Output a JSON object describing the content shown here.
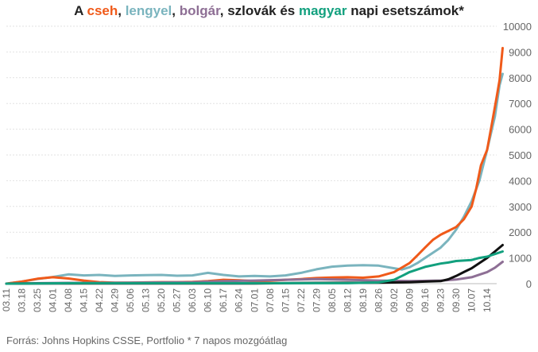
{
  "title_parts": [
    {
      "text": "A ",
      "color": "#222222"
    },
    {
      "text": "cseh",
      "color": "#f05a1a"
    },
    {
      "text": ", ",
      "color": "#222222"
    },
    {
      "text": "lengyel",
      "color": "#7ab4be"
    },
    {
      "text": ", ",
      "color": "#222222"
    },
    {
      "text": "bolgár",
      "color": "#8e6f95"
    },
    {
      "text": ", szlovák és ",
      "color": "#222222"
    },
    {
      "text": "magyar",
      "color": "#12a07e"
    },
    {
      "text": " napi esetszámok*",
      "color": "#222222"
    }
  ],
  "source": "Forrás: Johns Hopkins CSSE, Portfolio   * 7 napos mozgóátlag",
  "chart_data": {
    "type": "line",
    "title": "A cseh, lengyel, bolgár, szlovák és magyar napi esetszámok*",
    "x_tick_labels": [
      "03.11",
      "03.18",
      "03.25",
      "04.01",
      "04.08",
      "04.15",
      "04.22",
      "04.29",
      "05.06",
      "05.13",
      "05.20",
      "05.27",
      "06.03",
      "06.10",
      "06.17",
      "06.24",
      "07.01",
      "07.08",
      "07.15",
      "07.22",
      "07.29",
      "08.05",
      "08.12",
      "08.19",
      "08.26",
      "09.02",
      "09.09",
      "09.16",
      "09.23",
      "09.30",
      "10.07",
      "10.14"
    ],
    "x_unit": "week index from 03.11 (0 = 03.11, 1 = 03.18, ...)",
    "ylim": [
      0,
      10000
    ],
    "y_ticks": [
      "0",
      "1000",
      "2000",
      "3000",
      "4000",
      "5000",
      "6000",
      "7000",
      "8000",
      "9000",
      "10000"
    ],
    "grid": true,
    "series": [
      {
        "name": "lengyel",
        "color": "#7ab4be",
        "points": [
          [
            0,
            0
          ],
          [
            1,
            80
          ],
          [
            2,
            180
          ],
          [
            3,
            260
          ],
          [
            3.5,
            310
          ],
          [
            4,
            360
          ],
          [
            5,
            320
          ],
          [
            6,
            340
          ],
          [
            7,
            300
          ],
          [
            8,
            320
          ],
          [
            9,
            330
          ],
          [
            10,
            340
          ],
          [
            11,
            310
          ],
          [
            12,
            320
          ],
          [
            13,
            420
          ],
          [
            14,
            340
          ],
          [
            15,
            280
          ],
          [
            16,
            300
          ],
          [
            17,
            280
          ],
          [
            18,
            320
          ],
          [
            19,
            420
          ],
          [
            20,
            560
          ],
          [
            21,
            660
          ],
          [
            22,
            700
          ],
          [
            23,
            720
          ],
          [
            24,
            700
          ],
          [
            25,
            600
          ],
          [
            25.5,
            550
          ],
          [
            26,
            640
          ],
          [
            26.5,
            800
          ],
          [
            27,
            1000
          ],
          [
            27.5,
            1200
          ],
          [
            28,
            1400
          ],
          [
            28.5,
            1700
          ],
          [
            29,
            2100
          ],
          [
            29.5,
            2600
          ],
          [
            30,
            3200
          ],
          [
            30.5,
            4000
          ],
          [
            31,
            5200
          ],
          [
            31.5,
            6500
          ],
          [
            31.8,
            7700
          ],
          [
            32,
            8150
          ]
        ]
      },
      {
        "name": "cseh",
        "color": "#f05a1a",
        "points": [
          [
            0,
            0
          ],
          [
            1,
            80
          ],
          [
            2,
            190
          ],
          [
            3,
            250
          ],
          [
            4,
            200
          ],
          [
            5,
            120
          ],
          [
            6,
            60
          ],
          [
            7,
            40
          ],
          [
            8,
            40
          ],
          [
            9,
            50
          ],
          [
            10,
            60
          ],
          [
            11,
            60
          ],
          [
            12,
            70
          ],
          [
            13,
            100
          ],
          [
            14,
            150
          ],
          [
            15,
            130
          ],
          [
            16,
            100
          ],
          [
            17,
            110
          ],
          [
            18,
            150
          ],
          [
            19,
            180
          ],
          [
            20,
            220
          ],
          [
            21,
            240
          ],
          [
            22,
            250
          ],
          [
            23,
            230
          ],
          [
            24,
            280
          ],
          [
            25,
            450
          ],
          [
            26,
            800
          ],
          [
            26.5,
            1100
          ],
          [
            27,
            1400
          ],
          [
            27.5,
            1700
          ],
          [
            28,
            1900
          ],
          [
            28.5,
            2050
          ],
          [
            29,
            2200
          ],
          [
            29.5,
            2500
          ],
          [
            30,
            3000
          ],
          [
            30.3,
            3700
          ],
          [
            30.6,
            4600
          ],
          [
            31,
            5200
          ],
          [
            31.3,
            6200
          ],
          [
            31.6,
            7200
          ],
          [
            31.8,
            7900
          ],
          [
            32,
            9150
          ]
        ]
      },
      {
        "name": "bolgár",
        "color": "#8e6f95",
        "points": [
          [
            0,
            0
          ],
          [
            2,
            20
          ],
          [
            4,
            30
          ],
          [
            6,
            30
          ],
          [
            8,
            40
          ],
          [
            10,
            50
          ],
          [
            12,
            60
          ],
          [
            13,
            80
          ],
          [
            14,
            100
          ],
          [
            16,
            120
          ],
          [
            18,
            150
          ],
          [
            20,
            180
          ],
          [
            22,
            150
          ],
          [
            24,
            120
          ],
          [
            26,
            100
          ],
          [
            28,
            120
          ],
          [
            29,
            160
          ],
          [
            30,
            250
          ],
          [
            30.5,
            350
          ],
          [
            31,
            450
          ],
          [
            31.5,
            620
          ],
          [
            32,
            850
          ]
        ]
      },
      {
        "name": "szlovák",
        "color": "#111111",
        "points": [
          [
            0,
            0
          ],
          [
            2,
            10
          ],
          [
            4,
            10
          ],
          [
            8,
            10
          ],
          [
            12,
            10
          ],
          [
            16,
            10
          ],
          [
            20,
            30
          ],
          [
            24,
            40
          ],
          [
            26,
            60
          ],
          [
            27,
            80
          ],
          [
            28,
            100
          ],
          [
            28.5,
            170
          ],
          [
            29,
            300
          ],
          [
            29.5,
            450
          ],
          [
            30,
            600
          ],
          [
            30.5,
            800
          ],
          [
            31,
            1000
          ],
          [
            31.5,
            1250
          ],
          [
            32,
            1500
          ]
        ]
      },
      {
        "name": "magyar",
        "color": "#12a07e",
        "points": [
          [
            0,
            0
          ],
          [
            2,
            10
          ],
          [
            4,
            20
          ],
          [
            8,
            20
          ],
          [
            12,
            20
          ],
          [
            16,
            20
          ],
          [
            20,
            20
          ],
          [
            22,
            20
          ],
          [
            24,
            50
          ],
          [
            25,
            150
          ],
          [
            25.5,
            300
          ],
          [
            26,
            450
          ],
          [
            27,
            650
          ],
          [
            28,
            780
          ],
          [
            28.5,
            820
          ],
          [
            29,
            880
          ],
          [
            30,
            920
          ],
          [
            30.5,
            1000
          ],
          [
            31,
            1050
          ],
          [
            31.5,
            1150
          ],
          [
            32,
            1250
          ]
        ]
      }
    ]
  }
}
